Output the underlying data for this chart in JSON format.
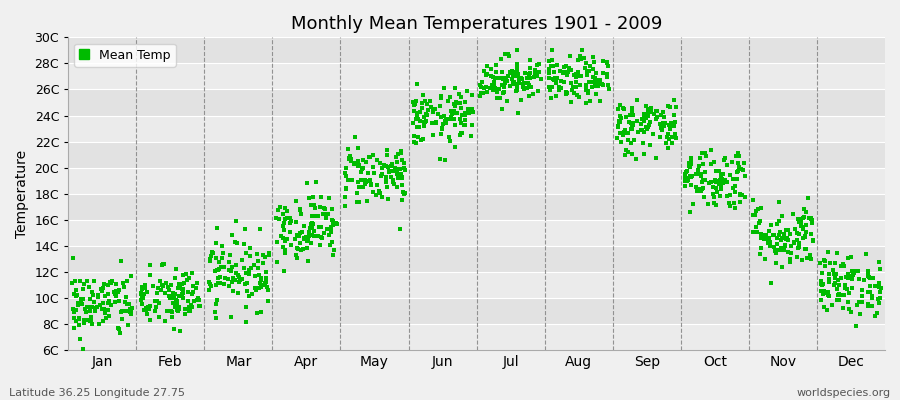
{
  "title": "Monthly Mean Temperatures 1901 - 2009",
  "ylabel": "Temperature",
  "footer_left": "Latitude 36.25 Longitude 27.75",
  "footer_right": "worldspecies.org",
  "legend_label": "Mean Temp",
  "dot_color": "#00BB00",
  "background_color": "#F0F0F0",
  "plot_bg_color": "#E8E8E8",
  "band_color_light": "#EFEFEF",
  "band_color_dark": "#E0E0E0",
  "ylim": [
    6,
    30
  ],
  "yticks": [
    6,
    8,
    10,
    12,
    14,
    16,
    18,
    20,
    22,
    24,
    26,
    28,
    30
  ],
  "ytick_labels": [
    "6C",
    "8C",
    "10C",
    "12C",
    "14C",
    "16C",
    "18C",
    "20C",
    "22C",
    "24C",
    "26C",
    "28C",
    "30C"
  ],
  "months": [
    "Jan",
    "Feb",
    "Mar",
    "Apr",
    "May",
    "Jun",
    "Jul",
    "Aug",
    "Sep",
    "Oct",
    "Nov",
    "Dec"
  ],
  "month_means": [
    9.5,
    10.0,
    12.0,
    15.5,
    19.5,
    23.8,
    26.8,
    26.7,
    23.2,
    19.2,
    14.8,
    11.0
  ],
  "month_stds": [
    1.3,
    1.2,
    1.4,
    1.3,
    1.2,
    1.1,
    0.9,
    0.9,
    1.1,
    1.2,
    1.3,
    1.2
  ],
  "n_years": 109,
  "seed": 42,
  "dot_size": 8,
  "dot_marker": "s"
}
